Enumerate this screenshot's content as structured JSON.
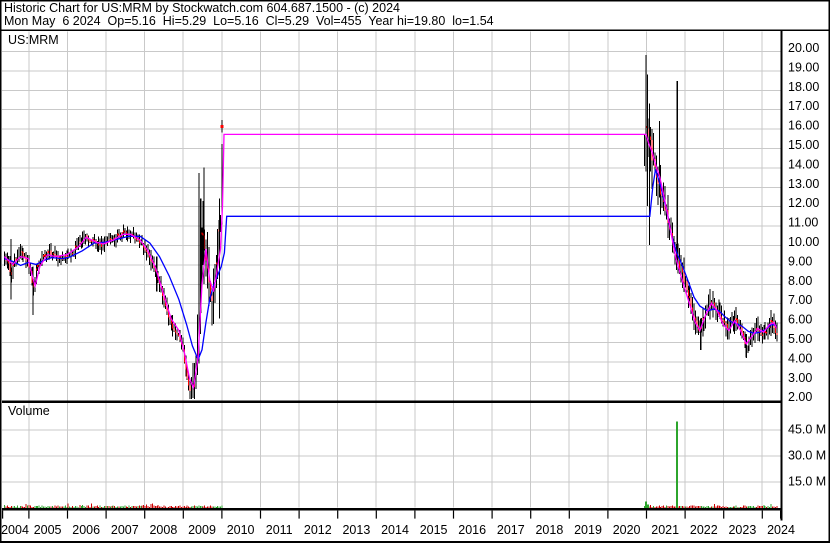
{
  "header": {
    "line1": "Historic Chart for US:MRM by Stockwatch.com 604.687.1500 - (c) 2024",
    "line2": "Mon May  6 2024  Op=5.16  Hi=5.29  Lo=5.16  Cl=5.29  Vol=455  Year hi=19.80  lo=1.54"
  },
  "main_panel": {
    "symbol_label": "US:MRM"
  },
  "volume_panel": {
    "label": "Volume"
  },
  "colors": {
    "grid": "#c9c9c9",
    "border": "#000000",
    "bar": "#000000",
    "close_tick": "#ff0000",
    "ma_fast": "#ff00ff",
    "ma_slow": "#0000ff",
    "vol_up": "#2ca52c",
    "vol_down": "#cc0000"
  },
  "chart_data": {
    "type": "ohlc-with-volume",
    "symbol": "US:MRM",
    "date": "Mon May 6 2024",
    "quote": {
      "open": 5.16,
      "high": 5.29,
      "low": 5.16,
      "close": 5.29,
      "volume": 455,
      "year_high": 19.8,
      "year_low": 1.54
    },
    "x_axis": {
      "years": [
        "2004",
        "2005",
        "2006",
        "2007",
        "2008",
        "2009",
        "2010",
        "2011",
        "2012",
        "2013",
        "2014",
        "2015",
        "2016",
        "2017",
        "2018",
        "2019",
        "2020",
        "2021",
        "2022",
        "2023",
        "2024"
      ]
    },
    "price_axis": {
      "range": [
        2,
        20
      ],
      "tick_values": [
        20,
        19,
        18,
        17,
        16,
        15,
        14,
        13,
        12,
        11,
        10,
        9,
        8,
        7,
        6,
        5,
        4,
        3,
        2
      ],
      "tick_labels": [
        "20.00",
        "19.00",
        "18.00",
        "17.00",
        "16.00",
        "15.00",
        "14.00",
        "13.00",
        "12.00",
        "11.00",
        "10.00",
        "9.00",
        "8.00",
        "7.00",
        "6.00",
        "5.00",
        "4.00",
        "3.00",
        "2.00"
      ]
    },
    "volume_axis": {
      "unit": "millions",
      "tick_values": [
        45,
        30,
        15
      ],
      "tick_labels": [
        "45.0 M",
        "30.0 M",
        "15.0 M"
      ]
    },
    "trading_eras": [
      {
        "start": 2004.38,
        "end": 2010.04
      },
      {
        "start": 2020.97,
        "end": 2024.4
      }
    ],
    "halted_period": {
      "start": 2010.04,
      "end": 2020.97,
      "ma_fast_flat": 15.7,
      "ma_slow_flat": 11.48
    },
    "close_keypoints": [
      [
        2004.38,
        9.3
      ],
      [
        2004.5,
        9.0
      ],
      [
        2004.56,
        8.3
      ],
      [
        2004.64,
        9.3
      ],
      [
        2004.8,
        9.6
      ],
      [
        2004.95,
        9.3
      ],
      [
        2005.05,
        8.7
      ],
      [
        2005.12,
        7.7
      ],
      [
        2005.22,
        8.9
      ],
      [
        2005.38,
        9.5
      ],
      [
        2005.55,
        9.6
      ],
      [
        2005.7,
        9.4
      ],
      [
        2005.85,
        9.3
      ],
      [
        2006.0,
        9.5
      ],
      [
        2006.15,
        9.6
      ],
      [
        2006.3,
        10.1
      ],
      [
        2006.45,
        10.5
      ],
      [
        2006.6,
        10.3
      ],
      [
        2006.75,
        10.1
      ],
      [
        2006.9,
        10.0
      ],
      [
        2007.05,
        10.2
      ],
      [
        2007.2,
        10.3
      ],
      [
        2007.35,
        10.5
      ],
      [
        2007.5,
        10.65
      ],
      [
        2007.65,
        10.55
      ],
      [
        2007.8,
        10.3
      ],
      [
        2007.95,
        10.1
      ],
      [
        2008.1,
        9.6
      ],
      [
        2008.25,
        8.9
      ],
      [
        2008.4,
        8.0
      ],
      [
        2008.5,
        7.2
      ],
      [
        2008.6,
        6.4
      ],
      [
        2008.7,
        5.9
      ],
      [
        2008.8,
        5.6
      ],
      [
        2008.9,
        5.4
      ],
      [
        2009.0,
        4.6
      ],
      [
        2009.1,
        3.3
      ],
      [
        2009.2,
        2.5
      ],
      [
        2009.3,
        2.7
      ],
      [
        2009.38,
        4.5
      ],
      [
        2009.45,
        8.5
      ],
      [
        2009.52,
        11.0
      ],
      [
        2009.6,
        9.5
      ],
      [
        2009.68,
        7.8
      ],
      [
        2009.76,
        7.3
      ],
      [
        2009.84,
        8.8
      ],
      [
        2009.92,
        10.2
      ],
      [
        2009.99,
        11.5
      ],
      [
        2010.03,
        16.1
      ],
      [
        2020.98,
        15.5
      ],
      [
        2021.03,
        16.5
      ],
      [
        2021.1,
        15.2
      ],
      [
        2021.18,
        14.4
      ],
      [
        2021.28,
        13.6
      ],
      [
        2021.38,
        12.9
      ],
      [
        2021.5,
        12.0
      ],
      [
        2021.6,
        11.0
      ],
      [
        2021.7,
        10.2
      ],
      [
        2021.8,
        9.4
      ],
      [
        2021.9,
        8.8
      ],
      [
        2022.0,
        8.2
      ],
      [
        2022.1,
        7.4
      ],
      [
        2022.2,
        6.6
      ],
      [
        2022.3,
        5.9
      ],
      [
        2022.4,
        5.5
      ],
      [
        2022.5,
        6.2
      ],
      [
        2022.62,
        6.9
      ],
      [
        2022.72,
        7.1
      ],
      [
        2022.82,
        6.7
      ],
      [
        2022.92,
        6.3
      ],
      [
        2023.02,
        5.9
      ],
      [
        2023.12,
        5.6
      ],
      [
        2023.22,
        5.9
      ],
      [
        2023.32,
        6.2
      ],
      [
        2023.45,
        5.7
      ],
      [
        2023.55,
        5.1
      ],
      [
        2023.62,
        4.7
      ],
      [
        2023.7,
        5.2
      ],
      [
        2023.8,
        5.6
      ],
      [
        2023.9,
        5.7
      ],
      [
        2024.0,
        5.5
      ],
      [
        2024.1,
        5.5
      ],
      [
        2024.2,
        5.9
      ],
      [
        2024.3,
        6.0
      ],
      [
        2024.38,
        5.29
      ]
    ],
    "ma_fast_keypoints": [
      [
        2004.38,
        9.4
      ],
      [
        2004.6,
        9.0
      ],
      [
        2004.8,
        9.4
      ],
      [
        2005.0,
        9.3
      ],
      [
        2005.1,
        8.4
      ],
      [
        2005.18,
        7.9
      ],
      [
        2005.3,
        8.9
      ],
      [
        2005.5,
        9.5
      ],
      [
        2005.7,
        9.4
      ],
      [
        2006.0,
        9.5
      ],
      [
        2006.3,
        9.9
      ],
      [
        2006.5,
        10.4
      ],
      [
        2006.75,
        10.15
      ],
      [
        2006.95,
        10.05
      ],
      [
        2007.2,
        10.25
      ],
      [
        2007.45,
        10.55
      ],
      [
        2007.65,
        10.55
      ],
      [
        2007.9,
        10.25
      ],
      [
        2008.1,
        9.7
      ],
      [
        2008.3,
        8.8
      ],
      [
        2008.5,
        7.5
      ],
      [
        2008.7,
        6.2
      ],
      [
        2008.9,
        5.6
      ],
      [
        2009.05,
        4.4
      ],
      [
        2009.18,
        3.1
      ],
      [
        2009.28,
        2.65
      ],
      [
        2009.4,
        4.2
      ],
      [
        2009.5,
        8.0
      ],
      [
        2009.6,
        9.8
      ],
      [
        2009.7,
        8.2
      ],
      [
        2009.8,
        7.6
      ],
      [
        2009.9,
        8.8
      ],
      [
        2009.98,
        9.8
      ],
      [
        2010.03,
        12.0
      ],
      [
        2010.07,
        15.7
      ],
      [
        2021.0,
        15.7
      ],
      [
        2021.08,
        15.2
      ],
      [
        2021.16,
        14.8
      ],
      [
        2021.26,
        14.1
      ],
      [
        2021.36,
        13.5
      ],
      [
        2021.47,
        12.5
      ],
      [
        2021.57,
        11.5
      ],
      [
        2021.67,
        10.4
      ],
      [
        2021.78,
        9.3
      ],
      [
        2021.88,
        8.6
      ],
      [
        2022.0,
        7.8
      ],
      [
        2022.14,
        6.9
      ],
      [
        2022.28,
        6.0
      ],
      [
        2022.4,
        5.6
      ],
      [
        2022.55,
        6.4
      ],
      [
        2022.7,
        7.0
      ],
      [
        2022.85,
        6.6
      ],
      [
        2023.0,
        5.9
      ],
      [
        2023.15,
        5.6
      ],
      [
        2023.3,
        6.1
      ],
      [
        2023.45,
        5.6
      ],
      [
        2023.6,
        4.9
      ],
      [
        2023.75,
        5.3
      ],
      [
        2023.9,
        5.7
      ],
      [
        2024.05,
        5.5
      ],
      [
        2024.2,
        5.9
      ],
      [
        2024.32,
        6.0
      ],
      [
        2024.38,
        5.7
      ]
    ],
    "ma_slow_keypoints": [
      [
        2004.38,
        9.3
      ],
      [
        2004.6,
        9.15
      ],
      [
        2004.8,
        8.95
      ],
      [
        2005.0,
        9.1
      ],
      [
        2005.2,
        9.0
      ],
      [
        2005.4,
        9.2
      ],
      [
        2005.6,
        9.35
      ],
      [
        2005.9,
        9.3
      ],
      [
        2006.1,
        9.4
      ],
      [
        2006.4,
        9.7
      ],
      [
        2006.7,
        10.1
      ],
      [
        2007.0,
        10.15
      ],
      [
        2007.3,
        10.3
      ],
      [
        2007.6,
        10.45
      ],
      [
        2007.9,
        10.45
      ],
      [
        2008.15,
        10.1
      ],
      [
        2008.4,
        9.4
      ],
      [
        2008.65,
        8.4
      ],
      [
        2008.9,
        7.2
      ],
      [
        2009.1,
        5.9
      ],
      [
        2009.25,
        4.8
      ],
      [
        2009.4,
        4.1
      ],
      [
        2009.5,
        4.6
      ],
      [
        2009.6,
        6.0
      ],
      [
        2009.7,
        7.2
      ],
      [
        2009.8,
        7.9
      ],
      [
        2009.9,
        8.4
      ],
      [
        2010.0,
        8.9
      ],
      [
        2010.08,
        9.6
      ],
      [
        2010.14,
        11.48
      ],
      [
        2021.1,
        11.48
      ],
      [
        2021.18,
        13.0
      ],
      [
        2021.25,
        13.9
      ],
      [
        2021.4,
        12.9
      ],
      [
        2021.55,
        11.7
      ],
      [
        2021.65,
        10.6
      ],
      [
        2021.8,
        9.6
      ],
      [
        2021.95,
        8.9
      ],
      [
        2022.1,
        8.1
      ],
      [
        2022.25,
        7.3
      ],
      [
        2022.4,
        6.85
      ],
      [
        2022.6,
        6.6
      ],
      [
        2022.75,
        6.7
      ],
      [
        2022.9,
        6.6
      ],
      [
        2023.05,
        6.3
      ],
      [
        2023.2,
        6.05
      ],
      [
        2023.35,
        5.95
      ],
      [
        2023.5,
        5.8
      ],
      [
        2023.65,
        5.55
      ],
      [
        2023.8,
        5.45
      ],
      [
        2023.95,
        5.5
      ],
      [
        2024.1,
        5.65
      ],
      [
        2024.25,
        5.9
      ],
      [
        2024.38,
        5.85
      ]
    ],
    "bar_range_noise": [
      [
        2004.38,
        0.45
      ],
      [
        2007.5,
        0.4
      ],
      [
        2008.3,
        0.5
      ],
      [
        2008.9,
        0.45
      ],
      [
        2009.15,
        0.5
      ],
      [
        2009.35,
        1.8
      ],
      [
        2009.5,
        2.2
      ],
      [
        2009.7,
        1.5
      ],
      [
        2009.9,
        1.3
      ],
      [
        2010.03,
        0.4
      ],
      [
        2020.98,
        2.2
      ],
      [
        2021.15,
        1.8
      ],
      [
        2021.35,
        1.3
      ],
      [
        2021.6,
        1.0
      ],
      [
        2021.9,
        0.9
      ],
      [
        2022.3,
        0.8
      ],
      [
        2023.0,
        0.7
      ],
      [
        2024.38,
        0.6
      ]
    ],
    "notable_bars": [
      {
        "t": 2004.55,
        "high": 10.3,
        "low": 7.2
      },
      {
        "t": 2005.12,
        "high": 8.9,
        "low": 6.4
      },
      {
        "t": 2008.33,
        "high": 9.4,
        "low": 7.6
      },
      {
        "t": 2009.42,
        "high": 13.7,
        "low": 5.9
      },
      {
        "t": 2009.47,
        "high": 12.4,
        "low": 6.5
      },
      {
        "t": 2009.55,
        "high": 14.0,
        "low": 8.0
      },
      {
        "t": 2009.95,
        "high": 12.4,
        "low": 6.2
      },
      {
        "t": 2021.0,
        "high": 19.8,
        "low": 13.8
      },
      {
        "t": 2021.04,
        "high": 18.8,
        "low": 12.0
      },
      {
        "t": 2021.09,
        "high": 17.3,
        "low": 10.0
      },
      {
        "t": 2021.35,
        "high": 16.4,
        "low": 12.8
      },
      {
        "t": 2021.81,
        "high": 18.45,
        "low": 9.2
      },
      {
        "t": 2022.42,
        "high": 6.2,
        "low": 4.6
      },
      {
        "t": 2023.6,
        "high": 5.4,
        "low": 4.2
      }
    ],
    "last_trade_before_halt": {
      "t": 2010.02,
      "price": 16.1,
      "high": 16.45,
      "low": 15.8
    },
    "volume_profile": {
      "eras": [
        {
          "start": 2004.38,
          "end": 2010.04,
          "base_millions": 0.7,
          "jitter_millions": 1.0
        },
        {
          "start": 2020.97,
          "end": 2024.4,
          "base_millions": 0.55,
          "jitter_millions": 0.9
        }
      ],
      "spikes": [
        {
          "t": 2021.81,
          "v_millions": 49.5
        },
        {
          "t": 2021.0,
          "v_millions": 3.6
        },
        {
          "t": 2021.05,
          "v_millions": 2.0
        }
      ]
    }
  }
}
